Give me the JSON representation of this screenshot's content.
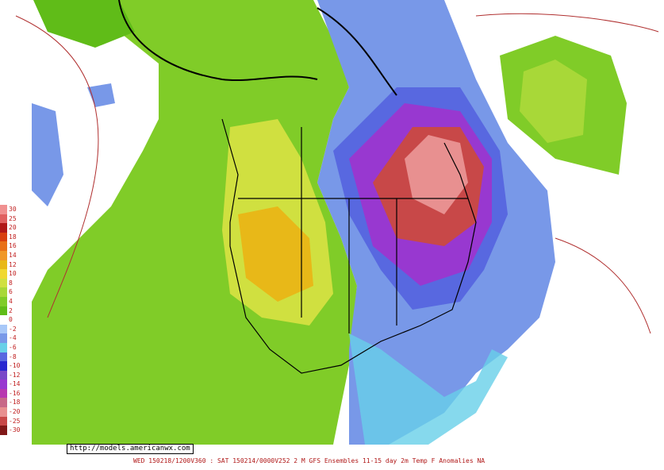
{
  "map": {
    "url": "http://models.americanwx.com",
    "footer": "WED 150218/1200V360 : SAT 150214/0000V252  2 M GFS Ensembles 11-15 day 2m Temp F Anomalies NA",
    "legend": [
      {
        "label": "30",
        "color": "#f09090"
      },
      {
        "label": "25",
        "color": "#e06060"
      },
      {
        "label": "20",
        "color": "#b01818"
      },
      {
        "label": "18",
        "color": "#d84010"
      },
      {
        "label": "16",
        "color": "#e87018"
      },
      {
        "label": "14",
        "color": "#f09828"
      },
      {
        "label": "12",
        "color": "#e8b818"
      },
      {
        "label": "10",
        "color": "#f0d830"
      },
      {
        "label": "8",
        "color": "#d0e040"
      },
      {
        "label": "6",
        "color": "#a8d838"
      },
      {
        "label": "4",
        "color": "#80cc28"
      },
      {
        "label": "2",
        "color": "#60bc18"
      },
      {
        "label": "0",
        "color": "#ffffff"
      },
      {
        "label": "-2",
        "color": "#a8c8f8"
      },
      {
        "label": "-4",
        "color": "#7898e8"
      },
      {
        "label": "-6",
        "color": "#68d0e8"
      },
      {
        "label": "-8",
        "color": "#5868e0"
      },
      {
        "label": "-10",
        "color": "#2828d0"
      },
      {
        "label": "-12",
        "color": "#7848c8"
      },
      {
        "label": "-14",
        "color": "#9838d0"
      },
      {
        "label": "-16",
        "color": "#b838b0"
      },
      {
        "label": "-18",
        "color": "#c86888"
      },
      {
        "label": "-20",
        "color": "#e89090"
      },
      {
        "label": "-25",
        "color": "#c84848"
      },
      {
        "label": "-30",
        "color": "#801818"
      }
    ]
  }
}
